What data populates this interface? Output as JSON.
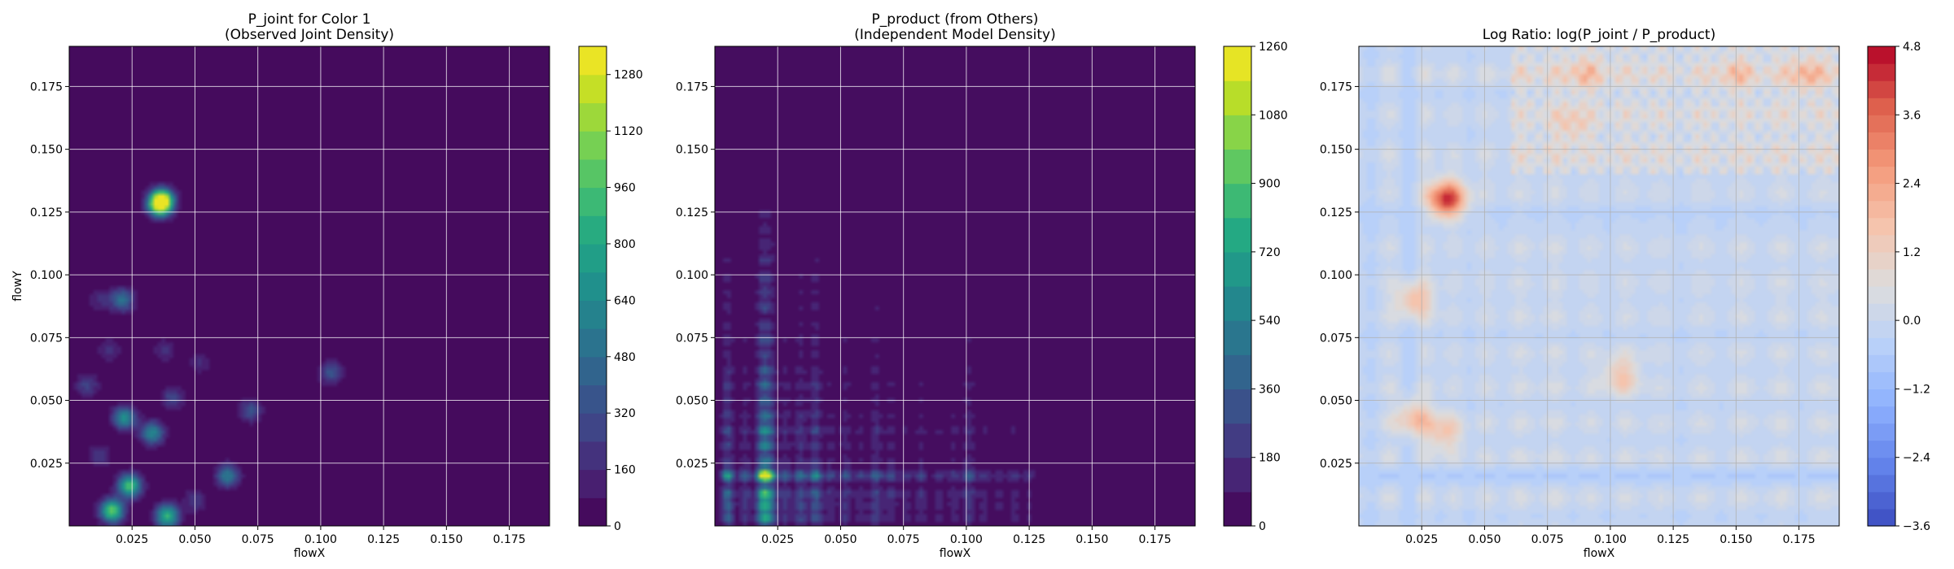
{
  "chart_data": [
    {
      "type": "heatmap",
      "title_lines": [
        "P_joint for Color 1",
        "(Observed Joint Density)"
      ],
      "xlabel": "flowX",
      "ylabel": "flowY",
      "xlim": [
        0.0,
        0.191
      ],
      "ylim": [
        0.0,
        0.191
      ],
      "xticks": [
        0.025,
        0.05,
        0.075,
        0.1,
        0.125,
        0.15,
        0.175
      ],
      "xtick_labels": [
        "0.025",
        "0.050",
        "0.075",
        "0.100",
        "0.125",
        "0.150",
        "0.175"
      ],
      "yticks": [
        0.025,
        0.05,
        0.075,
        0.1,
        0.125,
        0.15,
        0.175
      ],
      "ytick_labels": [
        "0.025",
        "0.050",
        "0.075",
        "0.100",
        "0.125",
        "0.150",
        "0.175"
      ],
      "grid": true,
      "colormap": "viridis",
      "colorbar": {
        "vmin": 0,
        "vmax": 1360,
        "levels": 17,
        "ticks": [
          0,
          160,
          320,
          480,
          640,
          800,
          960,
          1120,
          1280
        ],
        "tick_labels": [
          "0",
          "160",
          "320",
          "480",
          "640",
          "800",
          "960",
          "1120",
          "1280"
        ]
      },
      "density_peaks": [
        {
          "x": 0.036,
          "y": 0.128,
          "value": 1200
        },
        {
          "x": 0.037,
          "y": 0.13,
          "value": 900
        },
        {
          "x": 0.017,
          "y": 0.006,
          "value": 1050
        },
        {
          "x": 0.039,
          "y": 0.004,
          "value": 900
        },
        {
          "x": 0.024,
          "y": 0.016,
          "value": 950
        },
        {
          "x": 0.022,
          "y": 0.043,
          "value": 680
        },
        {
          "x": 0.033,
          "y": 0.037,
          "value": 640
        },
        {
          "x": 0.021,
          "y": 0.09,
          "value": 520
        },
        {
          "x": 0.063,
          "y": 0.02,
          "value": 560
        },
        {
          "x": 0.072,
          "y": 0.046,
          "value": 340
        },
        {
          "x": 0.041,
          "y": 0.051,
          "value": 300
        },
        {
          "x": 0.104,
          "y": 0.061,
          "value": 360
        },
        {
          "x": 0.007,
          "y": 0.056,
          "value": 280
        },
        {
          "x": 0.05,
          "y": 0.01,
          "value": 240
        },
        {
          "x": 0.012,
          "y": 0.028,
          "value": 220
        },
        {
          "x": 0.038,
          "y": 0.07,
          "value": 180
        },
        {
          "x": 0.016,
          "y": 0.07,
          "value": 200
        },
        {
          "x": 0.052,
          "y": 0.065,
          "value": 170
        },
        {
          "x": 0.012,
          "y": 0.09,
          "value": 170
        }
      ]
    },
    {
      "type": "heatmap",
      "title_lines": [
        "P_product (from Others)",
        "(Independent Model Density)"
      ],
      "xlabel": "flowX",
      "ylabel": "",
      "xlim": [
        0.0,
        0.191
      ],
      "ylim": [
        0.0,
        0.191
      ],
      "xticks": [
        0.025,
        0.05,
        0.075,
        0.1,
        0.125,
        0.15,
        0.175
      ],
      "xtick_labels": [
        "0.025",
        "0.050",
        "0.075",
        "0.100",
        "0.125",
        "0.150",
        "0.175"
      ],
      "yticks": [
        0.025,
        0.05,
        0.075,
        0.1,
        0.125,
        0.15,
        0.175
      ],
      "ytick_labels": [
        "0.025",
        "0.050",
        "0.075",
        "0.100",
        "0.125",
        "0.150",
        "0.175"
      ],
      "grid": true,
      "colormap": "viridis",
      "colorbar": {
        "vmin": 0,
        "vmax": 1260,
        "levels": 14,
        "ticks": [
          0,
          180,
          360,
          540,
          720,
          900,
          1080,
          1260
        ],
        "tick_labels": [
          "0",
          "180",
          "360",
          "540",
          "720",
          "900",
          "1080",
          "1260"
        ]
      },
      "marginal_x": [
        {
          "x": 0.005,
          "w": 1.0
        },
        {
          "x": 0.012,
          "w": 0.55
        },
        {
          "x": 0.019,
          "w": 1.6
        },
        {
          "x": 0.022,
          "w": 1.1
        },
        {
          "x": 0.028,
          "w": 0.55
        },
        {
          "x": 0.034,
          "w": 0.7
        },
        {
          "x": 0.04,
          "w": 0.9
        },
        {
          "x": 0.046,
          "w": 0.4
        },
        {
          "x": 0.052,
          "w": 0.5
        },
        {
          "x": 0.058,
          "w": 0.35
        },
        {
          "x": 0.064,
          "w": 0.6
        },
        {
          "x": 0.07,
          "w": 0.45
        },
        {
          "x": 0.076,
          "w": 0.3
        },
        {
          "x": 0.082,
          "w": 0.4
        },
        {
          "x": 0.089,
          "w": 0.3
        },
        {
          "x": 0.095,
          "w": 0.35
        },
        {
          "x": 0.101,
          "w": 0.55
        },
        {
          "x": 0.107,
          "w": 0.3
        },
        {
          "x": 0.113,
          "w": 0.25
        },
        {
          "x": 0.119,
          "w": 0.3
        },
        {
          "x": 0.125,
          "w": 0.25
        },
        {
          "x": 0.131,
          "w": 0.1
        },
        {
          "x": 0.145,
          "w": 0.08
        }
      ],
      "marginal_y": [
        {
          "y": 0.003,
          "w": 0.9
        },
        {
          "y": 0.008,
          "w": 0.9
        },
        {
          "y": 0.013,
          "w": 1.1
        },
        {
          "y": 0.02,
          "w": 1.7
        },
        {
          "y": 0.026,
          "w": 0.6
        },
        {
          "y": 0.032,
          "w": 0.7
        },
        {
          "y": 0.038,
          "w": 0.8
        },
        {
          "y": 0.044,
          "w": 0.6
        },
        {
          "y": 0.05,
          "w": 0.5
        },
        {
          "y": 0.056,
          "w": 0.55
        },
        {
          "y": 0.062,
          "w": 0.45
        },
        {
          "y": 0.068,
          "w": 0.35
        },
        {
          "y": 0.074,
          "w": 0.4
        },
        {
          "y": 0.08,
          "w": 0.3
        },
        {
          "y": 0.087,
          "w": 0.35
        },
        {
          "y": 0.093,
          "w": 0.3
        },
        {
          "y": 0.099,
          "w": 0.3
        },
        {
          "y": 0.106,
          "w": 0.25
        },
        {
          "y": 0.112,
          "w": 0.2
        },
        {
          "y": 0.118,
          "w": 0.18
        },
        {
          "y": 0.124,
          "w": 0.15
        },
        {
          "y": 0.145,
          "w": 0.04
        }
      ],
      "peak_value": 1230
    },
    {
      "type": "heatmap",
      "title_lines": [
        "Log Ratio: log(P_joint / P_product)"
      ],
      "xlabel": "flowX",
      "ylabel": "",
      "xlim": [
        0.0,
        0.191
      ],
      "ylim": [
        0.0,
        0.191
      ],
      "xticks": [
        0.025,
        0.05,
        0.075,
        0.1,
        0.125,
        0.15,
        0.175
      ],
      "xtick_labels": [
        "0.025",
        "0.050",
        "0.075",
        "0.100",
        "0.125",
        "0.150",
        "0.175"
      ],
      "yticks": [
        0.025,
        0.05,
        0.075,
        0.1,
        0.125,
        0.15,
        0.175
      ],
      "ytick_labels": [
        "0.025",
        "0.050",
        "0.075",
        "0.100",
        "0.125",
        "0.150",
        "0.175"
      ],
      "grid": true,
      "colormap": "coolwarm",
      "colorbar": {
        "vmin": -3.6,
        "vmax": 4.8,
        "levels": 28,
        "ticks": [
          -3.6,
          -2.4,
          -1.2,
          0.0,
          1.2,
          2.4,
          3.6,
          4.8
        ],
        "tick_labels": [
          "−3.6",
          "−2.4",
          "−1.2",
          "0.0",
          "1.2",
          "2.4",
          "3.6",
          "4.8"
        ]
      },
      "features": [
        {
          "x": 0.035,
          "y": 0.13,
          "value": 4.5
        },
        {
          "x": 0.022,
          "y": 0.09,
          "value": 2.0
        },
        {
          "x": 0.022,
          "y": 0.043,
          "value": 2.0
        },
        {
          "x": 0.034,
          "y": 0.037,
          "value": 1.6
        },
        {
          "x": 0.104,
          "y": 0.06,
          "value": 1.6
        },
        {
          "x": 0.09,
          "y": 0.18,
          "value": 1.2
        },
        {
          "x": 0.15,
          "y": 0.18,
          "value": 1.0
        },
        {
          "x": 0.178,
          "y": 0.18,
          "value": 1.5
        },
        {
          "x": 0.085,
          "y": 0.16,
          "value": 1.0
        }
      ],
      "bands_x": [
        {
          "x": 0.005,
          "v": -1.0
        },
        {
          "x": 0.012,
          "v": 0.6
        },
        {
          "x": 0.02,
          "v": -1.4
        },
        {
          "x": 0.026,
          "v": 0.8
        },
        {
          "x": 0.032,
          "v": -0.6
        },
        {
          "x": 0.038,
          "v": 0.5
        },
        {
          "x": 0.044,
          "v": -0.8
        },
        {
          "x": 0.05,
          "v": 0.6
        },
        {
          "x": 0.057,
          "v": -0.5
        },
        {
          "x": 0.064,
          "v": 0.7
        },
        {
          "x": 0.071,
          "v": -0.4
        },
        {
          "x": 0.078,
          "v": 0.8
        },
        {
          "x": 0.085,
          "v": -0.5
        },
        {
          "x": 0.092,
          "v": 0.5
        },
        {
          "x": 0.099,
          "v": -0.6
        },
        {
          "x": 0.106,
          "v": 0.6
        },
        {
          "x": 0.113,
          "v": -0.4
        },
        {
          "x": 0.12,
          "v": 0.4
        },
        {
          "x": 0.128,
          "v": -0.7
        },
        {
          "x": 0.136,
          "v": 0.5
        },
        {
          "x": 0.144,
          "v": -0.5
        },
        {
          "x": 0.152,
          "v": 0.6
        },
        {
          "x": 0.16,
          "v": -0.4
        },
        {
          "x": 0.168,
          "v": 0.7
        },
        {
          "x": 0.176,
          "v": -0.5
        },
        {
          "x": 0.184,
          "v": 0.6
        }
      ],
      "bands_y": [
        {
          "y": 0.004,
          "v": -0.8
        },
        {
          "y": 0.011,
          "v": 0.5
        },
        {
          "y": 0.02,
          "v": -1.8
        },
        {
          "y": 0.027,
          "v": 0.6
        },
        {
          "y": 0.034,
          "v": -0.6
        },
        {
          "y": 0.041,
          "v": 0.5
        },
        {
          "y": 0.048,
          "v": -0.7
        },
        {
          "y": 0.055,
          "v": 0.5
        },
        {
          "y": 0.062,
          "v": -0.5
        },
        {
          "y": 0.069,
          "v": 0.4
        },
        {
          "y": 0.076,
          "v": -0.8
        },
        {
          "y": 0.083,
          "v": 0.4
        },
        {
          "y": 0.09,
          "v": -0.4
        },
        {
          "y": 0.097,
          "v": 0.3
        },
        {
          "y": 0.104,
          "v": -0.5
        },
        {
          "y": 0.111,
          "v": 0.4
        },
        {
          "y": 0.118,
          "v": -0.6
        },
        {
          "y": 0.125,
          "v": -1.0
        },
        {
          "y": 0.132,
          "v": 0.3
        },
        {
          "y": 0.14,
          "v": -0.4
        },
        {
          "y": 0.148,
          "v": 0.5
        },
        {
          "y": 0.156,
          "v": -0.6
        },
        {
          "y": 0.164,
          "v": 0.4
        },
        {
          "y": 0.172,
          "v": -0.8
        },
        {
          "y": 0.18,
          "v": 0.9
        },
        {
          "y": 0.187,
          "v": -0.6
        }
      ]
    }
  ]
}
